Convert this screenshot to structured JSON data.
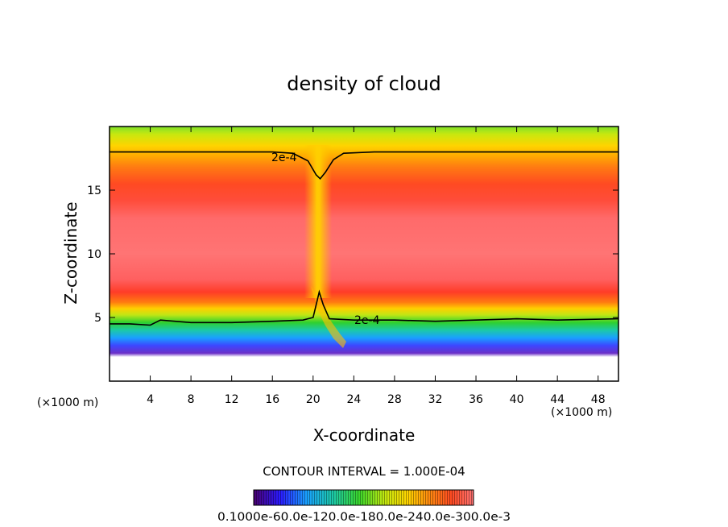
{
  "chart_data": {
    "type": "heatmap",
    "title": "density of cloud",
    "xlabel": "X-coordinate",
    "ylabel": "Z-coordinate",
    "x_unit": "(×1000 m)",
    "y_unit": "(×1000 m)",
    "xlim": [
      0,
      50
    ],
    "ylim": [
      0,
      20
    ],
    "x_ticks": [
      4,
      8,
      12,
      16,
      20,
      24,
      28,
      32,
      36,
      40,
      44,
      48
    ],
    "y_ticks": [
      5,
      10,
      15
    ],
    "contour_label": "2e-4",
    "contour_interval_text": "CONTOUR INTERVAL = 1.000E-04",
    "colorbar_labels_text": "0.1000e-60.0e-120.0e-180.0e-240.0e-300.0e-3",
    "contour_top": [
      [
        0,
        18.0
      ],
      [
        10,
        18.0
      ],
      [
        16,
        18.0
      ],
      [
        18,
        17.9
      ],
      [
        19.5,
        17.3
      ],
      [
        20.3,
        16.2
      ],
      [
        20.7,
        15.9
      ],
      [
        21.2,
        16.4
      ],
      [
        22,
        17.4
      ],
      [
        23,
        17.9
      ],
      [
        26,
        18.0
      ],
      [
        36,
        18.0
      ],
      [
        50,
        18.0
      ]
    ],
    "contour_bottom": [
      [
        0,
        4.5
      ],
      [
        2,
        4.5
      ],
      [
        4,
        4.4
      ],
      [
        5,
        4.8
      ],
      [
        8,
        4.6
      ],
      [
        12,
        4.6
      ],
      [
        16,
        4.7
      ],
      [
        19,
        4.8
      ],
      [
        20,
        5.0
      ],
      [
        20.3,
        6.0
      ],
      [
        20.6,
        7.0
      ],
      [
        21,
        6.0
      ],
      [
        21.6,
        4.9
      ],
      [
        24,
        4.8
      ],
      [
        28,
        4.8
      ],
      [
        32,
        4.7
      ],
      [
        36,
        4.8
      ],
      [
        40,
        4.9
      ],
      [
        44,
        4.8
      ],
      [
        50,
        4.9
      ]
    ]
  }
}
